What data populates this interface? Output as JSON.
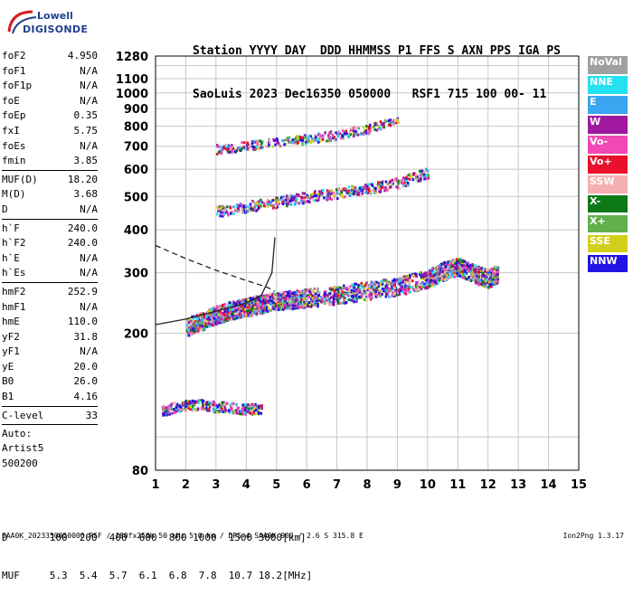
{
  "logo": {
    "line1": "Lowell",
    "line2": "DIGISONDE"
  },
  "header": {
    "labels": [
      "Station",
      "YYYY",
      "DAY",
      "DDD",
      "HHMMSS",
      "P1",
      "FFS",
      "S",
      "AXN",
      "PPS",
      "IGA",
      "PS"
    ],
    "values": [
      "SaoLuis",
      "2023",
      "Dec16",
      "350",
      "050000",
      "RSF",
      "1",
      "715",
      "100",
      "00-",
      "11"
    ]
  },
  "params_group1": [
    {
      "name": "foF2",
      "value": "4.950"
    },
    {
      "name": "foF1",
      "value": "N/A"
    },
    {
      "name": "foF1p",
      "value": "N/A"
    },
    {
      "name": "foE",
      "value": "N/A"
    },
    {
      "name": "foEp",
      "value": "0.35"
    },
    {
      "name": "fxI",
      "value": "5.75"
    },
    {
      "name": "foEs",
      "value": "N/A"
    },
    {
      "name": "fmin",
      "value": "3.85"
    }
  ],
  "params_group2": [
    {
      "name": "MUF(D)",
      "value": "18.20"
    },
    {
      "name": "M(D)",
      "value": "3.68"
    },
    {
      "name": "D",
      "value": "N/A"
    }
  ],
  "params_group3": [
    {
      "name": "h`F",
      "value": "240.0"
    },
    {
      "name": "h`F2",
      "value": "240.0"
    },
    {
      "name": "h`E",
      "value": "N/A"
    },
    {
      "name": "h`Es",
      "value": "N/A"
    }
  ],
  "params_group4": [
    {
      "name": "hmF2",
      "value": "252.9"
    },
    {
      "name": "hmF1",
      "value": "N/A"
    },
    {
      "name": "hmE",
      "value": "110.0"
    },
    {
      "name": "yF2",
      "value": "31.8"
    },
    {
      "name": "yF1",
      "value": "N/A"
    },
    {
      "name": "yE",
      "value": "20.0"
    },
    {
      "name": "B0",
      "value": "26.0"
    },
    {
      "name": "B1",
      "value": "4.16"
    }
  ],
  "c_level": {
    "name": "C-level",
    "value": "33"
  },
  "auto": [
    "Auto:",
    "Artist5",
    "500200"
  ],
  "legend": [
    {
      "label": "NoVal",
      "color": "#a0a0a0"
    },
    {
      "label": "NNE",
      "color": "#22e2f0"
    },
    {
      "label": "E",
      "color": "#3aa6f2"
    },
    {
      "label": "W",
      "color": "#a0189e"
    },
    {
      "label": "Vo-",
      "color": "#f048b4"
    },
    {
      "label": "Vo+",
      "color": "#e8102a"
    },
    {
      "label": "SSW",
      "color": "#f4b0b0"
    },
    {
      "label": "X-",
      "color": "#0e7a16"
    },
    {
      "label": "X+",
      "color": "#62b04c"
    },
    {
      "label": "SSE",
      "color": "#d2d01c"
    },
    {
      "label": "NNW",
      "color": "#2214e2"
    }
  ],
  "footer": {
    "d_label": "D",
    "d_values": [
      "100",
      "200",
      "400",
      "600",
      "800",
      "1000",
      "1500",
      "3000"
    ],
    "d_unit": "[km]",
    "muf_label": "MUF",
    "muf_values": [
      "5.3",
      "5.4",
      "5.7",
      "6.1",
      "6.8",
      "7.8",
      "10.7",
      "18.2"
    ],
    "muf_unit": "[MHz]",
    "info_line": "SAA0K_2023350050000.RSF / 280fx256h 50 kHz 5.0 km / DPS-4 SAA0K 903 / 2.6 S 315.8 E",
    "version": "Ion2Png 1.3.17"
  },
  "chart_data": {
    "type": "scatter",
    "xlim": [
      1,
      15
    ],
    "xticks": [
      1,
      2,
      3,
      4,
      5,
      6,
      7,
      8,
      9,
      10,
      11,
      12,
      13,
      14,
      15
    ],
    "ylim": [
      80,
      1280
    ],
    "yticks": [
      80,
      200,
      300,
      400,
      500,
      600,
      700,
      800,
      900,
      1000,
      1100,
      1280
    ],
    "y_scale": "log",
    "grid": true,
    "series": [
      {
        "name": "F2 trace",
        "x": [
          2.0,
          2.5,
          3.0,
          3.5,
          4.0,
          4.5,
          5.0,
          5.5,
          6.0,
          7.0,
          8.0,
          9.0,
          10.0,
          10.5,
          11.0,
          11.5,
          12.0,
          12.3
        ],
        "y": [
          210,
          218,
          228,
          235,
          240,
          245,
          250,
          252,
          255,
          260,
          268,
          275,
          290,
          305,
          315,
          300,
          290,
          300
        ]
      },
      {
        "name": "Second hop",
        "x": [
          3.0,
          4.0,
          5.0,
          6.0,
          7.0,
          8.0,
          9.0,
          10.0
        ],
        "y": [
          455,
          470,
          485,
          500,
          515,
          530,
          550,
          590
        ]
      },
      {
        "name": "Third hop",
        "x": [
          3.0,
          4.0,
          5.0,
          6.0,
          7.0,
          8.0,
          9.0
        ],
        "y": [
          690,
          705,
          725,
          740,
          760,
          790,
          840
        ]
      },
      {
        "name": "Low echoes",
        "x": [
          1.2,
          1.5,
          2.0,
          2.5,
          3.0,
          3.5,
          4.0,
          4.5
        ],
        "y": [
          120,
          122,
          124,
          125,
          123,
          122,
          121,
          122
        ]
      }
    ],
    "profile_solid": {
      "x": [
        1.0,
        2.0,
        3.0,
        4.0,
        4.5,
        4.85,
        4.95
      ],
      "y": [
        212,
        220,
        232,
        245,
        258,
        300,
        380
      ]
    },
    "profile_dashed": {
      "x": [
        1.0,
        2.0,
        3.0,
        4.0,
        4.7,
        4.95
      ],
      "y": [
        360,
        330,
        305,
        285,
        272,
        265
      ]
    }
  }
}
